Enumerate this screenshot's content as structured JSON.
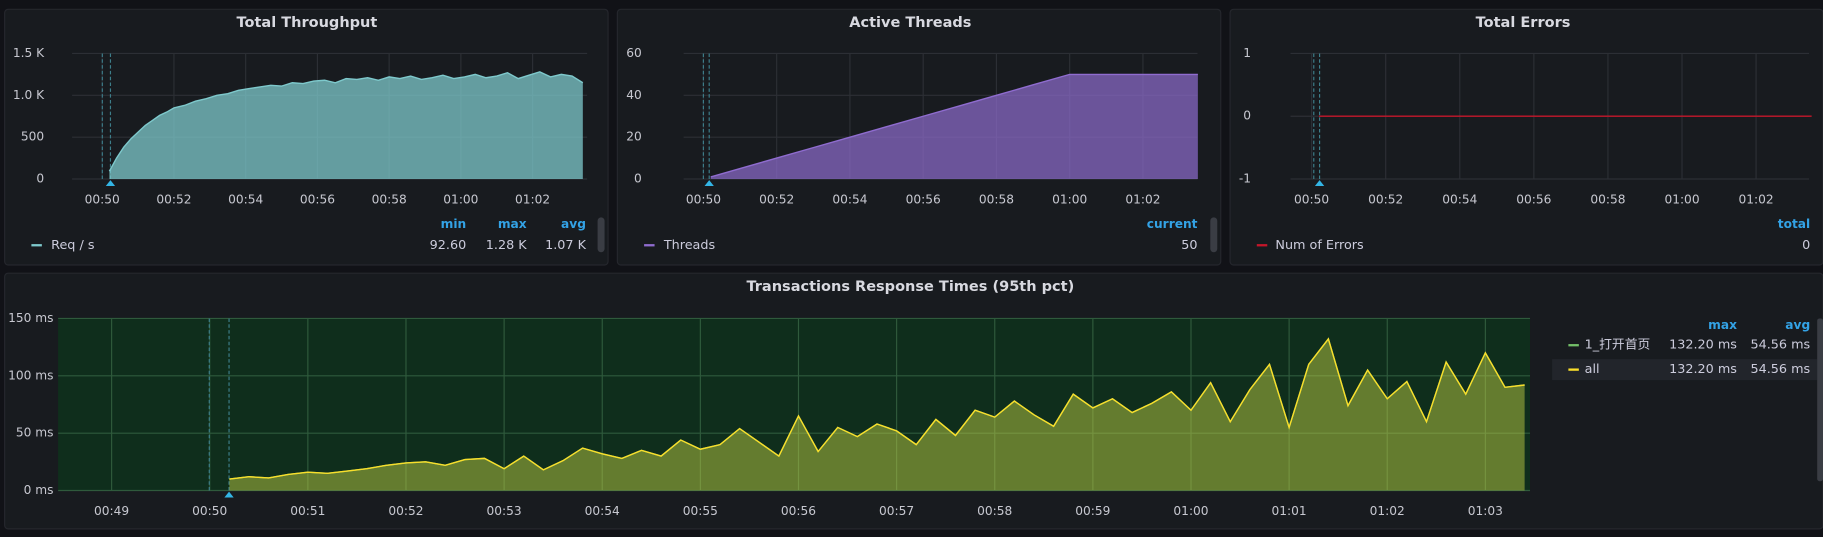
{
  "chart_data": [
    {
      "type": "area",
      "title": "Total Throughput",
      "x": [
        50.2,
        50.4,
        50.6,
        50.8,
        51.0,
        51.2,
        51.4,
        51.6,
        51.8,
        52.0,
        52.3,
        52.6,
        52.9,
        53.2,
        53.5,
        53.8,
        54.1,
        54.4,
        54.7,
        55.0,
        55.3,
        55.6,
        55.9,
        56.2,
        56.5,
        56.8,
        57.1,
        57.4,
        57.7,
        58.0,
        58.3,
        58.6,
        58.9,
        59.2,
        59.5,
        59.8,
        60.1,
        60.4,
        60.7,
        61.0,
        61.3,
        61.6,
        61.9,
        62.2,
        62.5,
        62.8,
        63.1,
        63.4
      ],
      "series": [
        {
          "name": "Req / s",
          "color": "#7ec9cc",
          "values": [
            92.6,
            250,
            380,
            480,
            560,
            640,
            700,
            760,
            800,
            850,
            880,
            930,
            960,
            1000,
            1020,
            1060,
            1080,
            1100,
            1120,
            1110,
            1150,
            1140,
            1170,
            1180,
            1150,
            1200,
            1190,
            1210,
            1180,
            1220,
            1200,
            1230,
            1190,
            1210,
            1240,
            1200,
            1220,
            1250,
            1210,
            1230,
            1270,
            1200,
            1240,
            1280,
            1220,
            1250,
            1230,
            1150
          ]
        }
      ],
      "xlim": [
        49.16,
        63.52
      ],
      "xticks": [
        {
          "value": 50,
          "label": "00:50"
        },
        {
          "value": 52,
          "label": "00:52"
        },
        {
          "value": 54,
          "label": "00:54"
        },
        {
          "value": 56,
          "label": "00:56"
        },
        {
          "value": 58,
          "label": "00:58"
        },
        {
          "value": 60,
          "label": "01:00"
        },
        {
          "value": 62,
          "label": "01:02"
        }
      ],
      "ylim": [
        0,
        1500
      ],
      "yticks": [
        0,
        500,
        {
          "value": 1000,
          "label": "1.0 K"
        },
        {
          "value": 1500,
          "label": "1.5 K"
        }
      ],
      "grid": true,
      "legend": {
        "headers": [
          "min",
          "max",
          "avg"
        ],
        "rows": [
          [
            "92.60",
            "1.28 K",
            "1.07 K"
          ]
        ]
      }
    },
    {
      "type": "area",
      "title": "Active Threads",
      "x": [
        50.2,
        51,
        52,
        53,
        54,
        55,
        56,
        57,
        58,
        59,
        60,
        63.5
      ],
      "series": [
        {
          "name": "Threads",
          "color": "#8f6ccf",
          "values": [
            1,
            5,
            10,
            15,
            20,
            25,
            30,
            35,
            40,
            45,
            50,
            50
          ]
        }
      ],
      "xlim": [
        49.46,
        63.49
      ],
      "xticks": [
        {
          "value": 50,
          "label": "00:50"
        },
        {
          "value": 52,
          "label": "00:52"
        },
        {
          "value": 54,
          "label": "00:54"
        },
        {
          "value": 56,
          "label": "00:56"
        },
        {
          "value": 58,
          "label": "00:58"
        },
        {
          "value": 60,
          "label": "01:00"
        },
        {
          "value": 62,
          "label": "01:02"
        }
      ],
      "ylim": [
        0,
        60
      ],
      "yticks": [
        0,
        20,
        40,
        60
      ],
      "grid": true,
      "legend": {
        "headers": [
          "current"
        ],
        "rows": [
          [
            "50"
          ]
        ]
      }
    },
    {
      "type": "line",
      "title": "Total Errors",
      "x": [
        50.2,
        63.5
      ],
      "series": [
        {
          "name": "Num of Errors",
          "color": "#c4162a",
          "values": [
            0,
            0
          ]
        }
      ],
      "xlim": [
        49.43,
        63.43
      ],
      "xticks": [
        {
          "value": 50,
          "label": "00:50"
        },
        {
          "value": 52,
          "label": "00:52"
        },
        {
          "value": 54,
          "label": "00:54"
        },
        {
          "value": 56,
          "label": "00:56"
        },
        {
          "value": 58,
          "label": "00:58"
        },
        {
          "value": 60,
          "label": "01:00"
        },
        {
          "value": 62,
          "label": "01:02"
        }
      ],
      "ylim": [
        -1,
        1
      ],
      "yticks": [
        -1,
        0,
        1
      ],
      "grid": true,
      "legend": {
        "headers": [
          "total"
        ],
        "rows": [
          [
            "0"
          ]
        ]
      }
    },
    {
      "type": "area",
      "title": "Transactions Response Times (95th pct)",
      "x": [
        50.2,
        50.4,
        50.6,
        50.8,
        51.0,
        51.2,
        51.4,
        51.6,
        51.8,
        52.0,
        52.2,
        52.4,
        52.6,
        52.8,
        53.0,
        53.2,
        53.4,
        53.6,
        53.8,
        54.0,
        54.2,
        54.4,
        54.6,
        54.8,
        55.0,
        55.2,
        55.4,
        55.6,
        55.8,
        56.0,
        56.2,
        56.4,
        56.6,
        56.8,
        57.0,
        57.2,
        57.4,
        57.6,
        57.8,
        58.0,
        58.2,
        58.4,
        58.6,
        58.8,
        59.0,
        59.2,
        59.4,
        59.6,
        59.8,
        60.0,
        60.2,
        60.4,
        60.6,
        60.8,
        61.0,
        61.2,
        61.4,
        61.6,
        61.8,
        62.0,
        62.2,
        62.4,
        62.6,
        62.8,
        63.0,
        63.2,
        63.4
      ],
      "series": [
        {
          "name": "1_打开首页",
          "color": "#73bf69",
          "values": [
            10,
            12,
            11,
            14,
            16,
            15,
            17,
            19,
            22,
            24,
            25,
            22,
            27,
            28,
            19,
            30,
            18,
            26,
            37,
            32,
            28,
            35,
            30,
            44,
            36,
            40,
            54,
            42,
            30,
            65,
            34,
            55,
            47,
            58,
            52,
            40,
            62,
            48,
            70,
            64,
            78,
            66,
            56,
            84,
            72,
            80,
            68,
            76,
            86,
            70,
            94,
            60,
            88,
            110,
            55,
            110,
            132.2,
            74,
            105,
            80,
            95,
            60,
            112,
            84,
            120,
            90,
            92
          ]
        },
        {
          "name": "all",
          "color": "#fade2a",
          "values": [
            10,
            12,
            11,
            14,
            16,
            15,
            17,
            19,
            22,
            24,
            25,
            22,
            27,
            28,
            19,
            30,
            18,
            26,
            37,
            32,
            28,
            35,
            30,
            44,
            36,
            40,
            54,
            42,
            30,
            65,
            34,
            55,
            47,
            58,
            52,
            40,
            62,
            48,
            70,
            64,
            78,
            66,
            56,
            84,
            72,
            80,
            68,
            76,
            86,
            70,
            94,
            60,
            88,
            110,
            55,
            110,
            132.2,
            74,
            105,
            80,
            95,
            60,
            112,
            84,
            120,
            90,
            92
          ]
        }
      ],
      "xlim": [
        48.455,
        63.455
      ],
      "xticks": [
        {
          "value": 49,
          "label": "00:49"
        },
        {
          "value": 50,
          "label": "00:50"
        },
        {
          "value": 51,
          "label": "00:51"
        },
        {
          "value": 52,
          "label": "00:52"
        },
        {
          "value": 53,
          "label": "00:53"
        },
        {
          "value": 54,
          "label": "00:54"
        },
        {
          "value": 55,
          "label": "00:55"
        },
        {
          "value": 56,
          "label": "00:56"
        },
        {
          "value": 57,
          "label": "00:57"
        },
        {
          "value": 58,
          "label": "00:58"
        },
        {
          "value": 59,
          "label": "00:59"
        },
        {
          "value": 60,
          "label": "01:00"
        },
        {
          "value": 61,
          "label": "01:01"
        },
        {
          "value": 62,
          "label": "01:02"
        },
        {
          "value": 63,
          "label": "01:03"
        }
      ],
      "ylim": [
        0,
        150
      ],
      "yticks": [
        {
          "value": 0,
          "label": "0 ms"
        },
        {
          "value": 50,
          "label": "50 ms"
        },
        {
          "value": 100,
          "label": "100 ms"
        },
        {
          "value": 150,
          "label": "150 ms"
        }
      ],
      "grid": true,
      "legend": {
        "headers": [
          "max",
          "avg"
        ],
        "rows": [
          [
            "132.20 ms",
            "54.56 ms"
          ],
          [
            "132.20 ms",
            "54.56 ms"
          ]
        ]
      }
    }
  ]
}
